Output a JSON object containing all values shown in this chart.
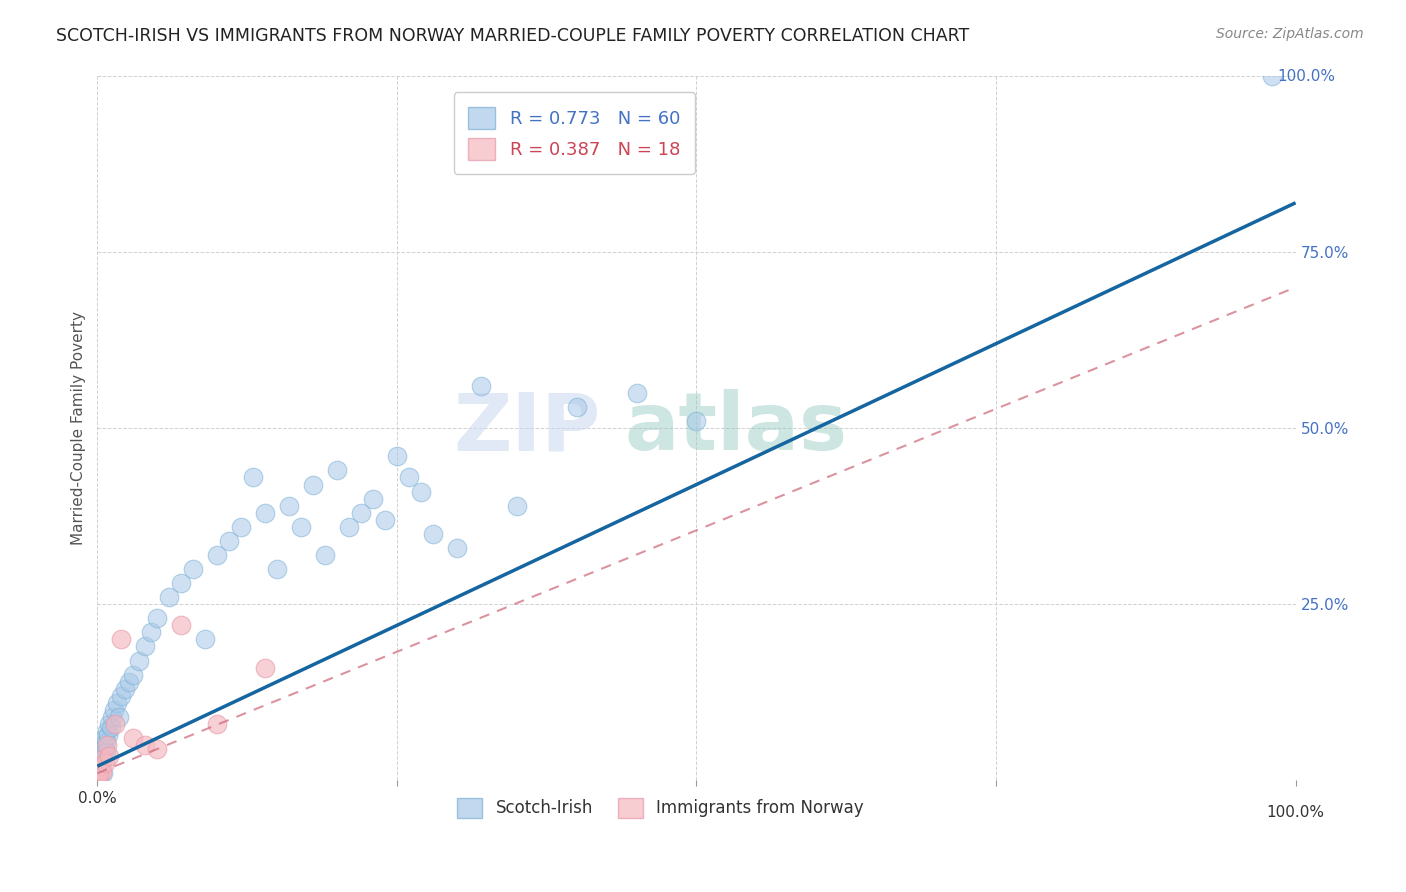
{
  "title": "SCOTCH-IRISH VS IMMIGRANTS FROM NORWAY MARRIED-COUPLE FAMILY POVERTY CORRELATION CHART",
  "source": "Source: ZipAtlas.com",
  "ylabel": "Married-Couple Family Poverty",
  "series1_label": "Scotch-Irish",
  "series2_label": "Immigrants from Norway",
  "series1_R": 0.773,
  "series1_N": 60,
  "series2_R": 0.387,
  "series2_N": 18,
  "series1_color": "#a8c8e8",
  "series2_color": "#f4b8c0",
  "series1_line_color": "#1565a0",
  "series2_line_color": "#cc6677",
  "watermark_zip": "ZIP",
  "watermark_atlas": "atlas",
  "xlim": [
    0,
    100
  ],
  "ylim": [
    0,
    100
  ],
  "series1_x": [
    0.1,
    0.15,
    0.2,
    0.25,
    0.3,
    0.35,
    0.4,
    0.45,
    0.5,
    0.55,
    0.6,
    0.65,
    0.7,
    0.75,
    0.8,
    0.9,
    1.0,
    1.1,
    1.2,
    1.4,
    1.6,
    1.8,
    2.0,
    2.3,
    2.6,
    3.0,
    3.5,
    4.0,
    4.5,
    5.0,
    6.0,
    7.0,
    8.0,
    9.0,
    10.0,
    11.0,
    12.0,
    13.0,
    14.0,
    15.0,
    16.0,
    17.0,
    18.0,
    19.0,
    20.0,
    21.0,
    22.0,
    23.0,
    24.0,
    25.0,
    26.0,
    27.0,
    28.0,
    30.0,
    32.0,
    35.0,
    40.0,
    45.0,
    50.0,
    98.0
  ],
  "series1_y": [
    0.5,
    1.0,
    1.5,
    2.0,
    2.5,
    3.0,
    3.5,
    1.0,
    4.0,
    5.0,
    4.5,
    6.0,
    5.5,
    4.0,
    7.0,
    6.5,
    8.0,
    7.5,
    9.0,
    10.0,
    11.0,
    9.0,
    12.0,
    13.0,
    14.0,
    15.0,
    17.0,
    19.0,
    21.0,
    23.0,
    26.0,
    28.0,
    30.0,
    20.0,
    32.0,
    34.0,
    36.0,
    43.0,
    38.0,
    30.0,
    39.0,
    36.0,
    42.0,
    32.0,
    44.0,
    36.0,
    38.0,
    40.0,
    37.0,
    46.0,
    43.0,
    41.0,
    35.0,
    33.0,
    56.0,
    39.0,
    53.0,
    55.0,
    51.0,
    100.0
  ],
  "series2_x": [
    0.05,
    0.1,
    0.15,
    0.2,
    0.3,
    0.4,
    0.5,
    0.6,
    0.8,
    1.0,
    1.5,
    2.0,
    3.0,
    4.0,
    5.0,
    7.0,
    10.0,
    14.0
  ],
  "series2_y": [
    0.5,
    0.8,
    1.0,
    1.5,
    2.0,
    1.2,
    3.0,
    2.5,
    5.0,
    3.5,
    8.0,
    20.0,
    6.0,
    5.0,
    4.5,
    22.0,
    8.0,
    16.0
  ],
  "reg1_x0": 0,
  "reg1_y0": 2,
  "reg1_x1": 100,
  "reg1_y1": 82,
  "reg2_x0": 0,
  "reg2_y0": 1,
  "reg2_x1": 100,
  "reg2_y1": 70
}
